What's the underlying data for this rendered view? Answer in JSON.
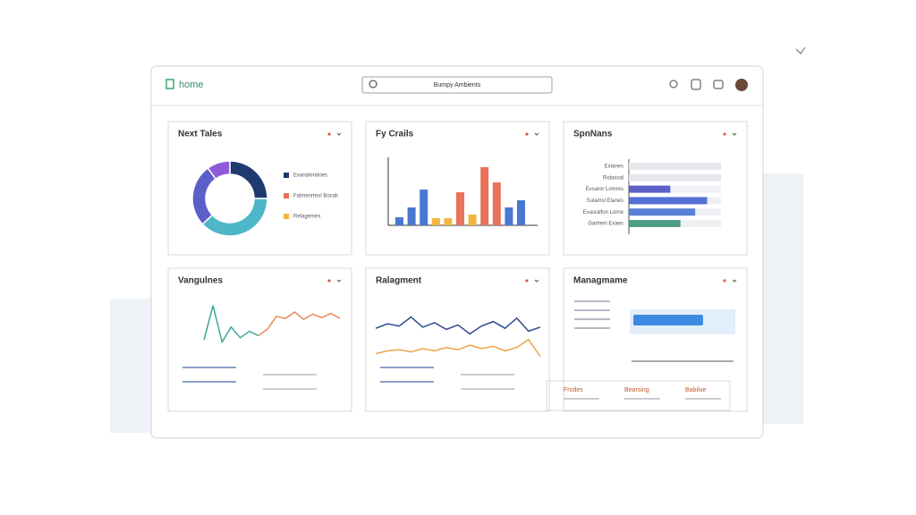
{
  "header": {
    "logo": "home",
    "search": "Bumpy Ambients"
  },
  "widgets": [
    {
      "title": "Next Tales",
      "type": "donut",
      "values": [
        25,
        38,
        27,
        10
      ],
      "colors": [
        "#1f3a6e",
        "#4db6c8",
        "#5b5fc7",
        "#8e5cd9"
      ],
      "legend": [
        "Evanalendoes",
        "Falmenrteol Bocak",
        "Relagemes"
      ],
      "legend_colors": [
        "#1f3a6e",
        "#e8735a",
        "#f2b63d"
      ]
    },
    {
      "title": "Fy Crails",
      "type": "bar",
      "values": [
        9,
        20,
        40,
        8,
        8,
        37,
        12,
        65,
        48,
        20,
        28
      ],
      "colors": [
        "#4a78d0",
        "#4a78d0",
        "#4a78d0",
        "#f2b63d",
        "#f2b63d",
        "#e8735a",
        "#f2b63d",
        "#e8735a",
        "#e8735a",
        "#4a78d0",
        "#4a78d0"
      ],
      "ylim": [
        0,
        70
      ]
    },
    {
      "title": "SpnNans",
      "type": "hbar",
      "labels": [
        "Exlanes",
        "Rolaxsal",
        "Evsaror Lomres",
        "Sulamsl Elanes",
        "Evasralfon Lorne",
        "Garlrenl Exaes"
      ],
      "values": [
        100,
        100,
        45,
        85,
        72,
        56
      ],
      "colors": [
        "#e6e8ee",
        "#e6e8ee",
        "#5b5fc7",
        "#5470d6",
        "#5a7fd8",
        "#4e9e8a"
      ],
      "xlim": [
        0,
        100
      ]
    },
    {
      "title": "Vangulnes",
      "type": "line",
      "ylim": [
        0,
        100
      ],
      "series": [
        {
          "color": "#3aa89a",
          "values": [
            10,
            90,
            5,
            40,
            15,
            30,
            20,
            null,
            null,
            null,
            null,
            null,
            null,
            null,
            null,
            null
          ]
        },
        {
          "color": "#e8895a",
          "values": [
            null,
            null,
            null,
            null,
            null,
            null,
            20,
            35,
            65,
            60,
            75,
            58,
            70,
            62,
            72,
            60
          ]
        }
      ]
    },
    {
      "title": "Ralagment",
      "type": "line",
      "ylim": [
        0,
        100
      ],
      "series": [
        {
          "color": "#2c4a8a",
          "values": [
            60,
            68,
            64,
            80,
            62,
            70,
            58,
            66,
            50,
            64,
            72,
            60,
            78,
            55,
            62
          ]
        },
        {
          "color": "#f0a14a",
          "values": [
            15,
            20,
            22,
            18,
            24,
            20,
            26,
            22,
            30,
            24,
            28,
            20,
            26,
            40,
            10
          ]
        }
      ]
    },
    {
      "title": "Managmame",
      "type": "panel",
      "items": [
        "Frodes",
        "Bearsing",
        "Babilue"
      ]
    }
  ]
}
